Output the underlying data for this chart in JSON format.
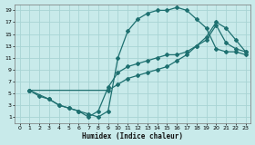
{
  "xlabel": "Humidex (Indice chaleur)",
  "bg_color": "#c8eaea",
  "grid_color": "#a8d4d4",
  "line_color": "#1e7070",
  "xlim": [
    -0.5,
    23.5
  ],
  "ylim": [
    0,
    20
  ],
  "xticks": [
    0,
    1,
    2,
    3,
    4,
    5,
    6,
    7,
    8,
    9,
    10,
    11,
    12,
    13,
    14,
    15,
    16,
    17,
    18,
    19,
    20,
    21,
    22,
    23
  ],
  "yticks": [
    1,
    3,
    5,
    7,
    9,
    11,
    13,
    15,
    17,
    19
  ],
  "line1_x": [
    1,
    2,
    3,
    4,
    5,
    6,
    7,
    8,
    9,
    10,
    11,
    12,
    13,
    14,
    15,
    16,
    17,
    18,
    19,
    20,
    21,
    22,
    23
  ],
  "line1_y": [
    5.5,
    4.5,
    4.0,
    3.0,
    2.5,
    2.0,
    1.5,
    1.0,
    2.0,
    11.0,
    15.5,
    17.5,
    18.5,
    19.0,
    19.0,
    19.5,
    19.0,
    17.5,
    16.0,
    12.5,
    12.0,
    12.0,
    11.5
  ],
  "line2_x": [
    1,
    9,
    10,
    11,
    12,
    13,
    14,
    15,
    16,
    17,
    18,
    19,
    20,
    21,
    22,
    23
  ],
  "line2_y": [
    5.5,
    5.5,
    6.5,
    7.5,
    8.0,
    8.5,
    9.0,
    9.5,
    10.5,
    11.5,
    13.0,
    14.5,
    17.0,
    16.0,
    14.0,
    12.0
  ],
  "line3_x": [
    1,
    3,
    4,
    5,
    6,
    7,
    8,
    9,
    10,
    11,
    12,
    13,
    14,
    15,
    16,
    17,
    18,
    19,
    20,
    21,
    22,
    23
  ],
  "line3_y": [
    5.5,
    4.0,
    3.0,
    2.5,
    2.0,
    1.0,
    2.0,
    6.0,
    8.5,
    9.5,
    10.0,
    10.5,
    11.0,
    11.5,
    11.5,
    12.0,
    13.0,
    14.0,
    16.5,
    13.5,
    12.5,
    12.0
  ]
}
